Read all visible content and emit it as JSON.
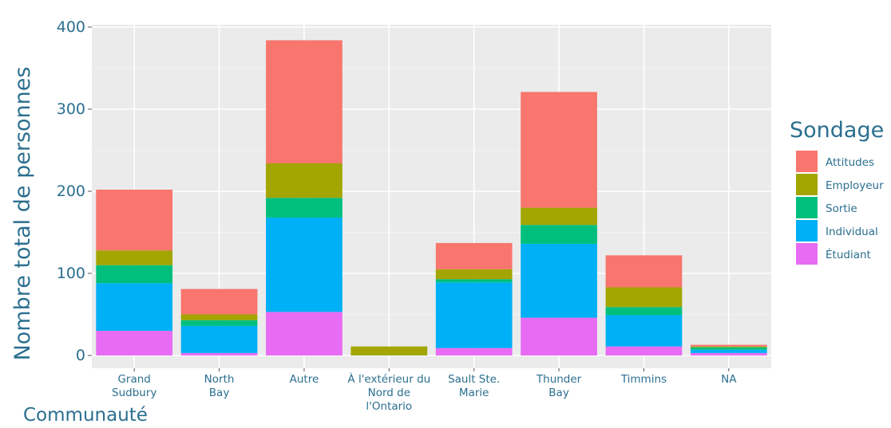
{
  "chart_data": {
    "type": "bar",
    "stacked": true,
    "xlabel": "Communauté",
    "ylabel": "Nombre total de personnes",
    "ylim": [
      0,
      400
    ],
    "yticks": [
      0,
      100,
      200,
      300,
      400
    ],
    "grid": true,
    "legend_title": "Sondage",
    "legend_position": "right",
    "categories": [
      [
        "Grand",
        "Sudbury"
      ],
      [
        "North",
        "Bay"
      ],
      [
        "Autre"
      ],
      [
        "À l'extérieur du",
        "Nord de",
        "l'Ontario"
      ],
      [
        "Sault Ste.",
        "Marie"
      ],
      [
        "Thunder",
        "Bay"
      ],
      [
        "Timmins"
      ],
      [
        "NA"
      ]
    ],
    "series": [
      {
        "name": "Étudiant",
        "color": "#E76BF3",
        "values": [
          30,
          3,
          53,
          0,
          9,
          46,
          11,
          3
        ]
      },
      {
        "name": "Individual",
        "color": "#00B0F6",
        "values": [
          58,
          33,
          115,
          0,
          80,
          90,
          38,
          4
        ]
      },
      {
        "name": "Sortie",
        "color": "#00BF7D",
        "values": [
          22,
          7,
          24,
          0,
          4,
          23,
          10,
          3
        ]
      },
      {
        "name": "Employeur",
        "color": "#A3A500",
        "values": [
          18,
          7,
          42,
          11,
          12,
          21,
          24,
          1
        ]
      },
      {
        "name": "Attitudes",
        "color": "#F8766D",
        "values": [
          74,
          31,
          150,
          0,
          32,
          141,
          39,
          2
        ]
      }
    ],
    "legend_order": [
      "Attitudes",
      "Employeur",
      "Sortie",
      "Individual",
      "Étudiant"
    ]
  }
}
